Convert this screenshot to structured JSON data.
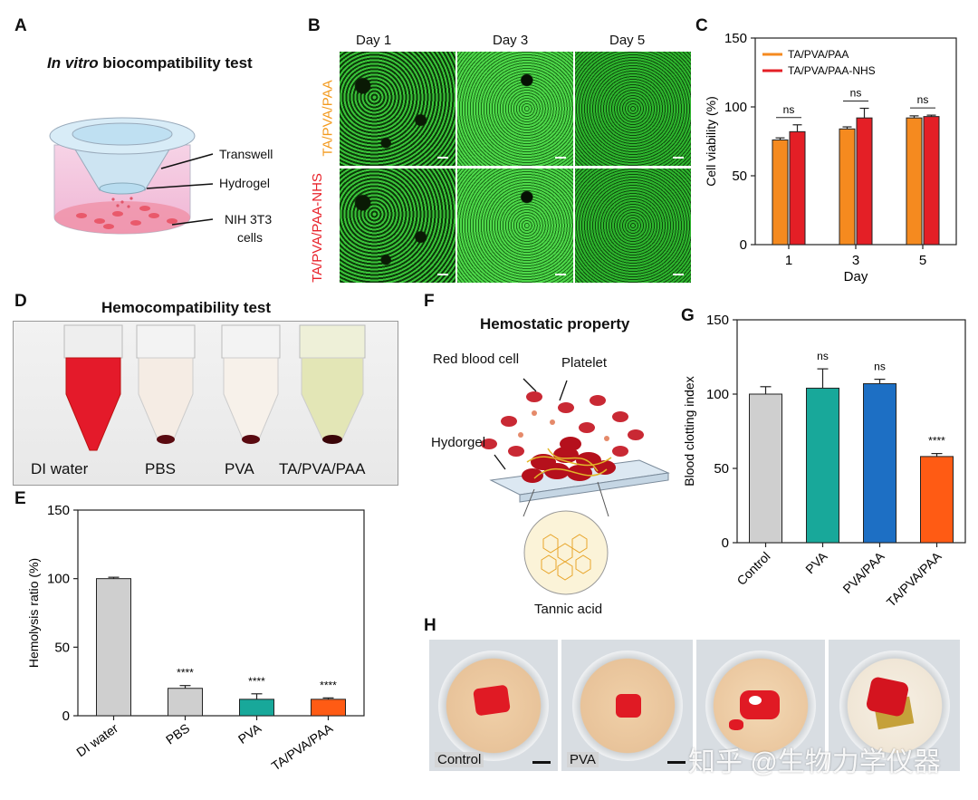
{
  "panels": {
    "A": {
      "letter": "A",
      "title_italic": "In vitro",
      "title_rest": " biocompatibility test",
      "labels": [
        "Transwell",
        "Hydrogel",
        "NIH 3T3",
        "cells"
      ]
    },
    "B": {
      "letter": "B",
      "columns": [
        "Day 1",
        "Day 3",
        "Day 5"
      ],
      "rows": [
        "TA/PVA/PAA",
        "TA/PVA/PAA-NHS"
      ],
      "row_colors": [
        "#f39a1e",
        "#e8222a"
      ]
    },
    "C": {
      "letter": "C"
    },
    "D": {
      "letter": "D",
      "title": "Hemocompatibility test",
      "tubes": [
        "DI water",
        "PBS",
        "PVA",
        "TA/PVA/PAA"
      ]
    },
    "E": {
      "letter": "E"
    },
    "F": {
      "letter": "F",
      "title": "Hemostatic property",
      "labels": [
        "Red blood cell",
        "Platelet",
        "Hydorgel",
        "Tannic acid"
      ]
    },
    "G": {
      "letter": "G"
    },
    "H": {
      "letter": "H",
      "dishes": [
        "Control",
        "PVA",
        "",
        ""
      ],
      "watermark": "知乎 @生物力学仪器"
    }
  },
  "colors": {
    "orange": "#f58a1f",
    "red": "#e41f26",
    "gray": "#cfcfcf",
    "teal": "#18a89a",
    "blue": "#1d6fc4",
    "orange_red": "#ff5b14"
  },
  "chart_data": [
    {
      "id": "C",
      "type": "bar",
      "categories": [
        "1",
        "3",
        "5"
      ],
      "series": [
        {
          "name": "TA/PVA/PAA",
          "values": [
            76,
            84,
            92
          ],
          "errors": [
            1.5,
            1.5,
            1.5
          ],
          "color": "#f58a1f"
        },
        {
          "name": "TA/PVA/PAA-NHS",
          "values": [
            82,
            92,
            93
          ],
          "errors": [
            5,
            7,
            1
          ],
          "color": "#e41f26"
        }
      ],
      "annotations": [
        "ns",
        "ns",
        "ns"
      ],
      "xlabel": "Day",
      "ylabel": "Cell viability (%)",
      "ylim": [
        0,
        150
      ],
      "yticks": [
        "0",
        "50",
        "100",
        "150"
      ],
      "legend": "top-left",
      "grid": false
    },
    {
      "id": "E",
      "type": "bar",
      "categories": [
        "DI water",
        "PBS",
        "PVA",
        "TA/PVA/PAA"
      ],
      "values": [
        100,
        20,
        12,
        12
      ],
      "errors": [
        1,
        2,
        4,
        1
      ],
      "colors": [
        "#cfcfcf",
        "#cfcfcf",
        "#18a89a",
        "#ff5b14"
      ],
      "annotations": [
        "",
        "****",
        "****",
        "****"
      ],
      "xlabel": "",
      "ylabel": "Hemolysis ratio (%)",
      "ylim": [
        0,
        150
      ],
      "yticks": [
        "0",
        "50",
        "100",
        "150"
      ],
      "grid": false
    },
    {
      "id": "G",
      "type": "bar",
      "categories": [
        "Control",
        "PVA",
        "PVA/PAA",
        "TA/PVA/PAA"
      ],
      "values": [
        100,
        104,
        107,
        58
      ],
      "errors": [
        5,
        13,
        3,
        2
      ],
      "colors": [
        "#cfcfcf",
        "#18a89a",
        "#1d6fc4",
        "#ff5b14"
      ],
      "annotations": [
        "",
        "ns",
        "ns",
        "****"
      ],
      "xlabel": "",
      "ylabel": "Blood clotting index",
      "ylim": [
        0,
        150
      ],
      "yticks": [
        "0",
        "50",
        "100",
        "150"
      ],
      "grid": false
    }
  ]
}
